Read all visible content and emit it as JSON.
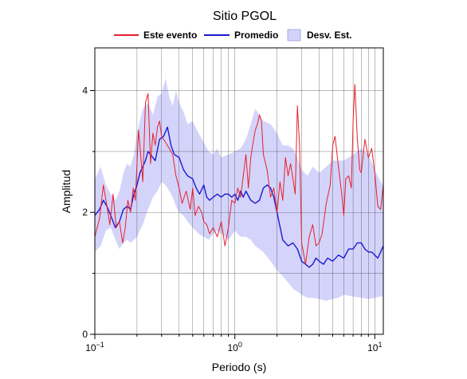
{
  "chart_data": {
    "type": "line",
    "title": "Sitio PGOL",
    "xlabel": "Periodo (s)",
    "ylabel": "Amplitud",
    "xscale": "log",
    "xlim": [
      0.1,
      11.5
    ],
    "ylim": [
      0,
      4.7
    ],
    "x_tick_labels": [
      {
        "value": 0.1,
        "base": "10",
        "exp": "−1"
      },
      {
        "value": 1,
        "base": "10",
        "exp": "0"
      },
      {
        "value": 10,
        "base": "10",
        "exp": "1"
      }
    ],
    "y_tick_labels": [
      "0",
      "2",
      "4"
    ],
    "y_ticks": [
      0,
      2,
      4
    ],
    "grid": true,
    "legend_position": "top",
    "legend": [
      {
        "label": "Este evento",
        "kind": "line",
        "color": "#e8202a"
      },
      {
        "label": "Promedio",
        "kind": "line",
        "color": "#1a1ad2"
      },
      {
        "label": "Desv. Est.",
        "kind": "band",
        "color": "#d4d4fb"
      }
    ],
    "series": [
      {
        "name": "Este evento",
        "color": "#e8202a",
        "x": [
          0.1,
          0.108,
          0.115,
          0.122,
          0.128,
          0.135,
          0.142,
          0.15,
          0.158,
          0.165,
          0.172,
          0.18,
          0.188,
          0.195,
          0.2,
          0.205,
          0.21,
          0.22,
          0.23,
          0.24,
          0.25,
          0.26,
          0.27,
          0.28,
          0.29,
          0.3,
          0.32,
          0.34,
          0.36,
          0.38,
          0.4,
          0.42,
          0.45,
          0.48,
          0.5,
          0.52,
          0.55,
          0.58,
          0.6,
          0.63,
          0.66,
          0.7,
          0.75,
          0.8,
          0.85,
          0.9,
          0.95,
          1.0,
          1.05,
          1.1,
          1.15,
          1.2,
          1.25,
          1.3,
          1.35,
          1.4,
          1.45,
          1.5,
          1.55,
          1.6,
          1.7,
          1.8,
          1.9,
          2.0,
          2.1,
          2.2,
          2.3,
          2.4,
          2.5,
          2.6,
          2.7,
          2.8,
          2.9,
          3.0,
          3.2,
          3.4,
          3.6,
          3.8,
          4.0,
          4.2,
          4.5,
          4.8,
          5.0,
          5.2,
          5.5,
          5.8,
          6.0,
          6.2,
          6.5,
          6.8,
          7.0,
          7.2,
          7.5,
          7.8,
          8.0,
          8.5,
          9.0,
          9.5,
          10.0,
          10.5,
          11.0,
          11.5
        ],
        "y": [
          1.6,
          1.9,
          2.45,
          2.1,
          1.8,
          2.3,
          1.75,
          1.85,
          1.5,
          1.75,
          2.2,
          2.0,
          2.4,
          2.2,
          2.8,
          3.35,
          3.1,
          2.5,
          3.8,
          3.95,
          2.8,
          3.3,
          3.1,
          3.4,
          3.5,
          3.25,
          3.15,
          3.05,
          2.95,
          2.6,
          2.4,
          2.15,
          2.35,
          2.05,
          2.4,
          1.95,
          2.1,
          2.0,
          1.85,
          1.8,
          1.65,
          1.75,
          1.6,
          1.85,
          1.45,
          1.75,
          2.2,
          2.15,
          2.4,
          2.25,
          2.6,
          2.95,
          2.4,
          2.9,
          3.15,
          3.35,
          3.45,
          3.6,
          3.5,
          2.95,
          2.7,
          2.25,
          2.4,
          2.0,
          2.5,
          2.2,
          2.9,
          2.6,
          2.8,
          2.55,
          2.3,
          3.75,
          3.1,
          1.5,
          1.15,
          1.6,
          1.8,
          1.45,
          1.5,
          1.65,
          2.15,
          2.45,
          3.1,
          3.25,
          2.75,
          2.3,
          1.95,
          2.55,
          2.6,
          2.4,
          3.5,
          4.1,
          3.2,
          2.7,
          2.65,
          3.2,
          2.9,
          3.05,
          2.65,
          2.1,
          2.05,
          2.45
        ]
      },
      {
        "name": "Promedio",
        "color": "#1a1ad2",
        "x": [
          0.1,
          0.108,
          0.115,
          0.122,
          0.13,
          0.14,
          0.15,
          0.16,
          0.17,
          0.18,
          0.19,
          0.2,
          0.21,
          0.22,
          0.23,
          0.24,
          0.25,
          0.27,
          0.29,
          0.31,
          0.33,
          0.35,
          0.37,
          0.4,
          0.43,
          0.46,
          0.5,
          0.53,
          0.56,
          0.6,
          0.63,
          0.66,
          0.7,
          0.75,
          0.8,
          0.85,
          0.9,
          0.95,
          1.0,
          1.05,
          1.1,
          1.15,
          1.2,
          1.3,
          1.4,
          1.5,
          1.6,
          1.7,
          1.8,
          1.9,
          2.0,
          2.2,
          2.4,
          2.6,
          2.8,
          3.0,
          3.2,
          3.4,
          3.6,
          3.8,
          4.0,
          4.3,
          4.6,
          5.0,
          5.5,
          6.0,
          6.5,
          7.0,
          7.5,
          8.0,
          8.5,
          9.0,
          9.5,
          10.0,
          10.5,
          11.0,
          11.5
        ],
        "y": [
          1.95,
          2.05,
          2.2,
          2.1,
          1.95,
          1.75,
          1.85,
          2.05,
          2.1,
          2.05,
          2.3,
          2.45,
          2.65,
          2.75,
          2.85,
          3.0,
          2.95,
          2.85,
          3.2,
          3.25,
          3.4,
          3.1,
          2.95,
          2.9,
          2.7,
          2.6,
          2.55,
          2.4,
          2.3,
          2.45,
          2.25,
          2.2,
          2.25,
          2.3,
          2.25,
          2.3,
          2.3,
          2.25,
          2.3,
          2.2,
          2.35,
          2.25,
          2.35,
          2.2,
          2.15,
          2.2,
          2.4,
          2.45,
          2.4,
          2.25,
          2.0,
          1.55,
          1.45,
          1.5,
          1.4,
          1.2,
          1.15,
          1.1,
          1.15,
          1.25,
          1.2,
          1.15,
          1.25,
          1.2,
          1.3,
          1.25,
          1.4,
          1.4,
          1.5,
          1.5,
          1.4,
          1.35,
          1.35,
          1.3,
          1.25,
          1.35,
          1.45
        ]
      }
    ],
    "band": {
      "name": "Desv. Est.",
      "color": "#d4d4fb",
      "x": [
        0.1,
        0.11,
        0.12,
        0.13,
        0.14,
        0.15,
        0.16,
        0.17,
        0.18,
        0.19,
        0.2,
        0.22,
        0.24,
        0.26,
        0.28,
        0.3,
        0.32,
        0.34,
        0.36,
        0.38,
        0.4,
        0.43,
        0.46,
        0.5,
        0.55,
        0.6,
        0.65,
        0.7,
        0.75,
        0.8,
        0.9,
        1.0,
        1.1,
        1.2,
        1.3,
        1.4,
        1.5,
        1.6,
        1.8,
        2.0,
        2.2,
        2.4,
        2.6,
        2.8,
        3.0,
        3.3,
        3.6,
        4.0,
        4.5,
        5.0,
        5.5,
        6.0,
        7.0,
        8.0,
        9.0,
        10.0,
        11.0,
        11.5
      ],
      "upper": [
        2.55,
        2.75,
        2.45,
        2.3,
        2.2,
        2.35,
        2.65,
        2.8,
        2.75,
        2.95,
        3.3,
        3.7,
        3.8,
        3.6,
        3.9,
        3.95,
        4.2,
        3.9,
        3.75,
        4.0,
        3.8,
        3.65,
        3.45,
        3.5,
        3.3,
        3.15,
        3.0,
        2.95,
        3.05,
        2.9,
        2.95,
        3.0,
        3.05,
        3.2,
        3.45,
        3.7,
        3.6,
        3.5,
        3.45,
        3.3,
        3.1,
        3.1,
        3.05,
        2.9,
        2.7,
        2.6,
        2.75,
        2.65,
        2.75,
        2.85,
        2.85,
        2.85,
        2.95,
        3.05,
        2.95,
        2.7,
        2.5,
        2.45
      ],
      "lower": [
        1.35,
        1.45,
        1.7,
        1.75,
        1.55,
        1.4,
        1.5,
        1.55,
        1.5,
        1.55,
        1.6,
        1.8,
        2.05,
        2.25,
        2.35,
        2.5,
        2.45,
        2.35,
        2.25,
        2.1,
        2.0,
        1.95,
        1.85,
        1.75,
        1.65,
        1.6,
        1.55,
        1.65,
        1.7,
        1.65,
        1.55,
        1.7,
        1.6,
        1.6,
        1.55,
        1.45,
        1.4,
        1.35,
        1.2,
        1.05,
        0.95,
        0.85,
        0.75,
        0.7,
        0.65,
        0.6,
        0.6,
        0.58,
        0.55,
        0.58,
        0.6,
        0.65,
        0.62,
        0.6,
        0.58,
        0.6,
        0.62,
        0.62
      ]
    }
  }
}
